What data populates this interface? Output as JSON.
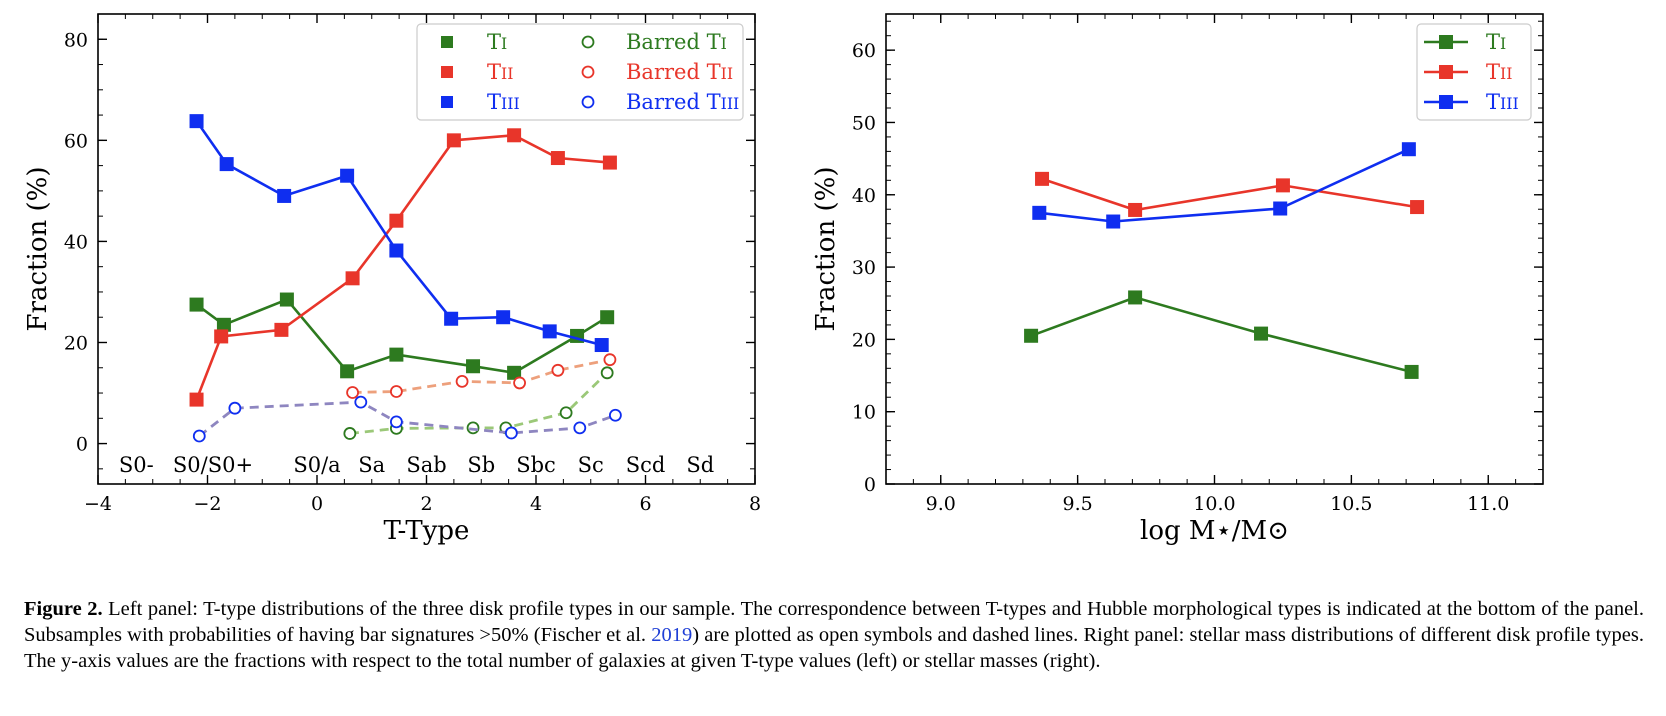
{
  "colors": {
    "t1": "#2d7a1f",
    "t2": "#e8352a",
    "t3": "#0f2ef0",
    "t1_barred_line": "#9bc878",
    "t2_barred_line": "#eda07c",
    "t3_barred_line": "#8e86c0"
  },
  "chart_data": [
    {
      "type": "line",
      "xlabel": "T-Type",
      "ylabel": "Fraction (%)",
      "xlim": [
        -4,
        8
      ],
      "ylim": [
        -8,
        85
      ],
      "xticks": [
        -4,
        -2,
        0,
        2,
        4,
        6,
        8
      ],
      "xtick_labels": [
        "−4",
        "−2",
        "0",
        "2",
        "4",
        "6",
        "8"
      ],
      "yticks": [
        0,
        20,
        40,
        60,
        80
      ],
      "ytick_labels": [
        "0",
        "20",
        "40",
        "60",
        "80"
      ],
      "legend_position": "top-right",
      "hubble_types": [
        {
          "label": "S0-",
          "x": -3.3
        },
        {
          "label": "S0/S0+",
          "x": -1.9
        },
        {
          "label": "S0/a",
          "x": 0
        },
        {
          "label": "Sa",
          "x": 1
        },
        {
          "label": "Sab",
          "x": 2
        },
        {
          "label": "Sb",
          "x": 3
        },
        {
          "label": "Sbc",
          "x": 4
        },
        {
          "label": "Sc",
          "x": 5
        },
        {
          "label": "Scd",
          "x": 6
        },
        {
          "label": "Sd",
          "x": 7
        }
      ],
      "series": [
        {
          "name": "TI",
          "key": "t1",
          "style": "solid-square",
          "x": [
            -2.2,
            -1.7,
            -0.55,
            0.55,
            1.45,
            2.85,
            3.6,
            4.75,
            5.3
          ],
          "y": [
            27.5,
            23.5,
            28.5,
            14.3,
            17.6,
            15.3,
            14.0,
            21.3,
            25.0
          ]
        },
        {
          "name": "TII",
          "key": "t2",
          "style": "solid-square",
          "x": [
            -2.2,
            -1.75,
            -0.65,
            0.65,
            1.45,
            2.5,
            3.6,
            4.4,
            5.35
          ],
          "y": [
            8.7,
            21.2,
            22.5,
            32.7,
            44.1,
            60.0,
            61.0,
            56.5,
            55.6
          ]
        },
        {
          "name": "TIII",
          "key": "t3",
          "style": "solid-square",
          "x": [
            -2.2,
            -1.65,
            -0.6,
            0.55,
            1.45,
            2.45,
            3.4,
            4.25,
            5.2
          ],
          "y": [
            63.8,
            55.3,
            49.0,
            53.0,
            38.2,
            24.7,
            25.0,
            22.2,
            19.5
          ]
        },
        {
          "name": "Barred TI",
          "key": "t1",
          "style": "dashed-open-circle",
          "x": [
            0.6,
            1.45,
            2.85,
            3.45,
            4.55,
            5.3
          ],
          "y": [
            2.0,
            3.0,
            3.1,
            3.1,
            6.1,
            14.0
          ]
        },
        {
          "name": "Barred TII",
          "key": "t2",
          "style": "dashed-open-circle",
          "x": [
            0.65,
            1.45,
            2.65,
            3.7,
            4.4,
            5.35
          ],
          "y": [
            10.1,
            10.3,
            12.3,
            12.0,
            14.5,
            16.6
          ]
        },
        {
          "name": "Barred TIII",
          "key": "t3",
          "style": "dashed-open-circle",
          "x": [
            -2.15,
            -1.5,
            0.8,
            1.45,
            3.55,
            4.8,
            5.45
          ],
          "y": [
            1.5,
            7.0,
            8.2,
            4.3,
            2.1,
            3.1,
            5.6
          ]
        }
      ]
    },
    {
      "type": "line",
      "xlabel": "log M⋆/M⊙",
      "ylabel": "Fraction (%)",
      "xlim": [
        8.8,
        11.2
      ],
      "ylim": [
        0,
        65
      ],
      "xticks": [
        9.0,
        9.5,
        10.0,
        10.5,
        11.0
      ],
      "xtick_labels": [
        "9.0",
        "9.5",
        "10.0",
        "10.5",
        "11.0"
      ],
      "yticks": [
        0,
        10,
        20,
        30,
        40,
        50,
        60
      ],
      "ytick_labels": [
        "0",
        "10",
        "20",
        "30",
        "40",
        "50",
        "60"
      ],
      "legend_position": "top-right",
      "series": [
        {
          "name": "TI",
          "key": "t1",
          "x": [
            9.33,
            9.71,
            10.17,
            10.72
          ],
          "y": [
            20.5,
            25.8,
            20.8,
            15.5
          ]
        },
        {
          "name": "TII",
          "key": "t2",
          "x": [
            9.37,
            9.71,
            10.25,
            10.74
          ],
          "y": [
            42.2,
            37.9,
            41.3,
            38.3
          ]
        },
        {
          "name": "TIII",
          "key": "t3",
          "x": [
            9.36,
            9.63,
            10.24,
            10.71
          ],
          "y": [
            37.5,
            36.3,
            38.1,
            46.3
          ]
        }
      ]
    }
  ],
  "caption": {
    "label": "Figure 2.",
    "text_before_cite": " Left panel: T-type distributions of the three disk profile types in our sample. The correspondence between T-types and Hubble morphological types is indicated at the bottom of the panel. Subsamples with probabilities of having bar signatures >50% (Fischer et al. ",
    "cite": "2019",
    "text_after_cite": ") are plotted as open symbols and dashed lines. Right panel: stellar mass distributions of different disk profile types. The y-axis values are the fractions with respect to the total number of galaxies at given T-type values (left) or stellar masses (right)."
  }
}
